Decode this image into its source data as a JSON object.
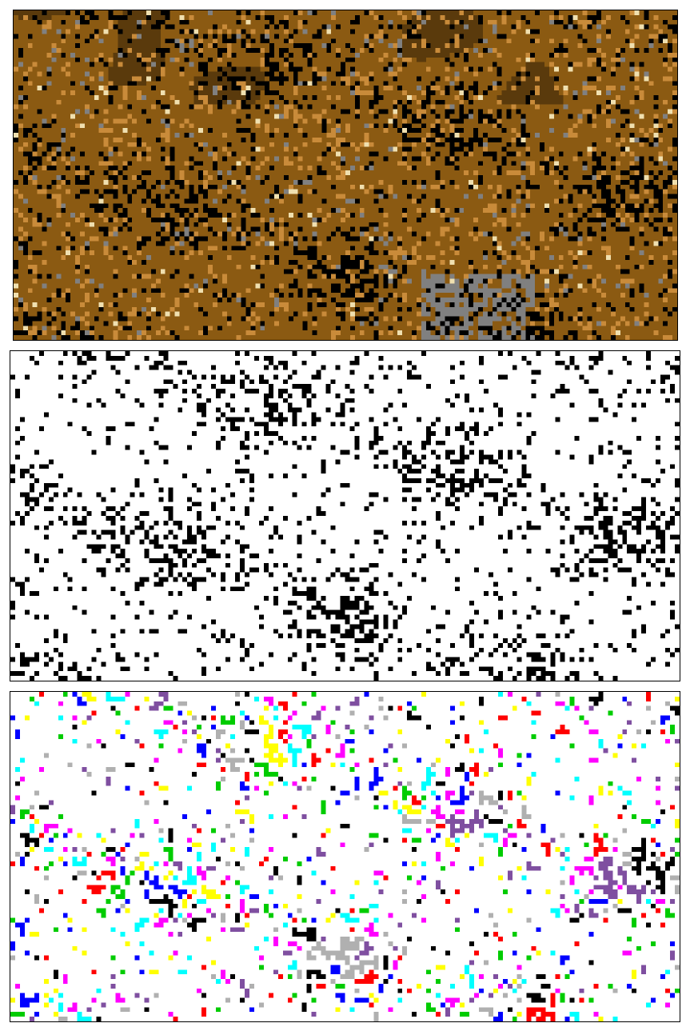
{
  "figure": {
    "panels": [
      {
        "id": "terrain",
        "kind": "color-terrain-raster"
      },
      {
        "id": "binary",
        "kind": "binary-mask-raster"
      },
      {
        "id": "clusters",
        "kind": "labeled-cluster-raster"
      }
    ],
    "colors": {
      "terrain_dark": "#5a3a0c",
      "terrain_mid": "#8b5a12",
      "terrain_light": "#c98b3a",
      "terrain_highlight": "#f0e0b0",
      "gray": "#808080",
      "black": "#000000",
      "white": "#ffffff",
      "cluster_palette": [
        "#000000",
        "#ff0000",
        "#00cc00",
        "#0000ff",
        "#ffff00",
        "#00ffff",
        "#ff00ff",
        "#7f4fa0",
        "#b0b0b0"
      ]
    }
  }
}
